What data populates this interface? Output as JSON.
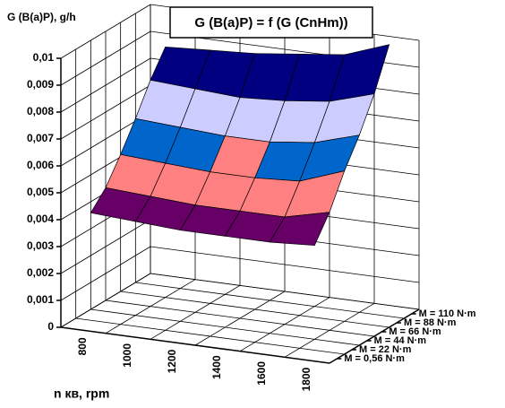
{
  "chart_data": {
    "type": "surface",
    "title": "G (B(a)P) = f (G (CnHm))",
    "y_label": "G (B(a)P), g/h",
    "x_label": "n кв, rpm",
    "categories": [
      "800",
      "1000",
      "1200",
      "1400",
      "1600",
      "1800"
    ],
    "series": [
      {
        "name": "M = 0,56 N·m",
        "values": [
          0.0042,
          0.0041,
          0.004,
          0.004,
          0.004,
          0.0041
        ]
      },
      {
        "name": "M = 22 N·m",
        "values": [
          0.0048,
          0.0047,
          0.0046,
          0.0046,
          0.0046,
          0.005
        ]
      },
      {
        "name": "M = 44 N·m",
        "values": [
          0.0057,
          0.0056,
          0.0055,
          0.0055,
          0.0056,
          0.0062
        ]
      },
      {
        "name": "M = 66 N·m",
        "values": [
          0.0067,
          0.0066,
          0.0065,
          0.0065,
          0.0067,
          0.0072
        ]
      },
      {
        "name": "M = 88 N·m",
        "values": [
          0.0078,
          0.0077,
          0.0076,
          0.0077,
          0.0079,
          0.0084
        ]
      },
      {
        "name": "M = 110 N·m",
        "values": [
          0.0087,
          0.0088,
          0.0089,
          0.0091,
          0.0093,
          0.0099
        ]
      }
    ],
    "ylim": [
      0,
      0.01
    ],
    "yticks": [
      0,
      {
        "value": 0.001,
        "label": "0,001"
      },
      {
        "value": 0.002,
        "label": "0,002"
      },
      {
        "value": 0.003,
        "label": "0,003"
      },
      {
        "value": 0.004,
        "label": "0,004"
      },
      {
        "value": 0.005,
        "label": "0,005"
      },
      {
        "value": 0.006,
        "label": "0,006"
      },
      {
        "value": 0.007,
        "label": "0,007"
      },
      {
        "value": 0.008,
        "label": "0,008"
      },
      {
        "value": 0.009,
        "label": "0,009"
      },
      {
        "value": 0.01,
        "label": "0,01"
      }
    ],
    "band_colors": [
      "#ccffff",
      "#ccffff",
      "#ccffff",
      "#ccffff",
      "#660066",
      "#ff8080",
      "#0066cc",
      "#ccccff",
      "#000080",
      "#ff00ff"
    ],
    "grid": true
  }
}
